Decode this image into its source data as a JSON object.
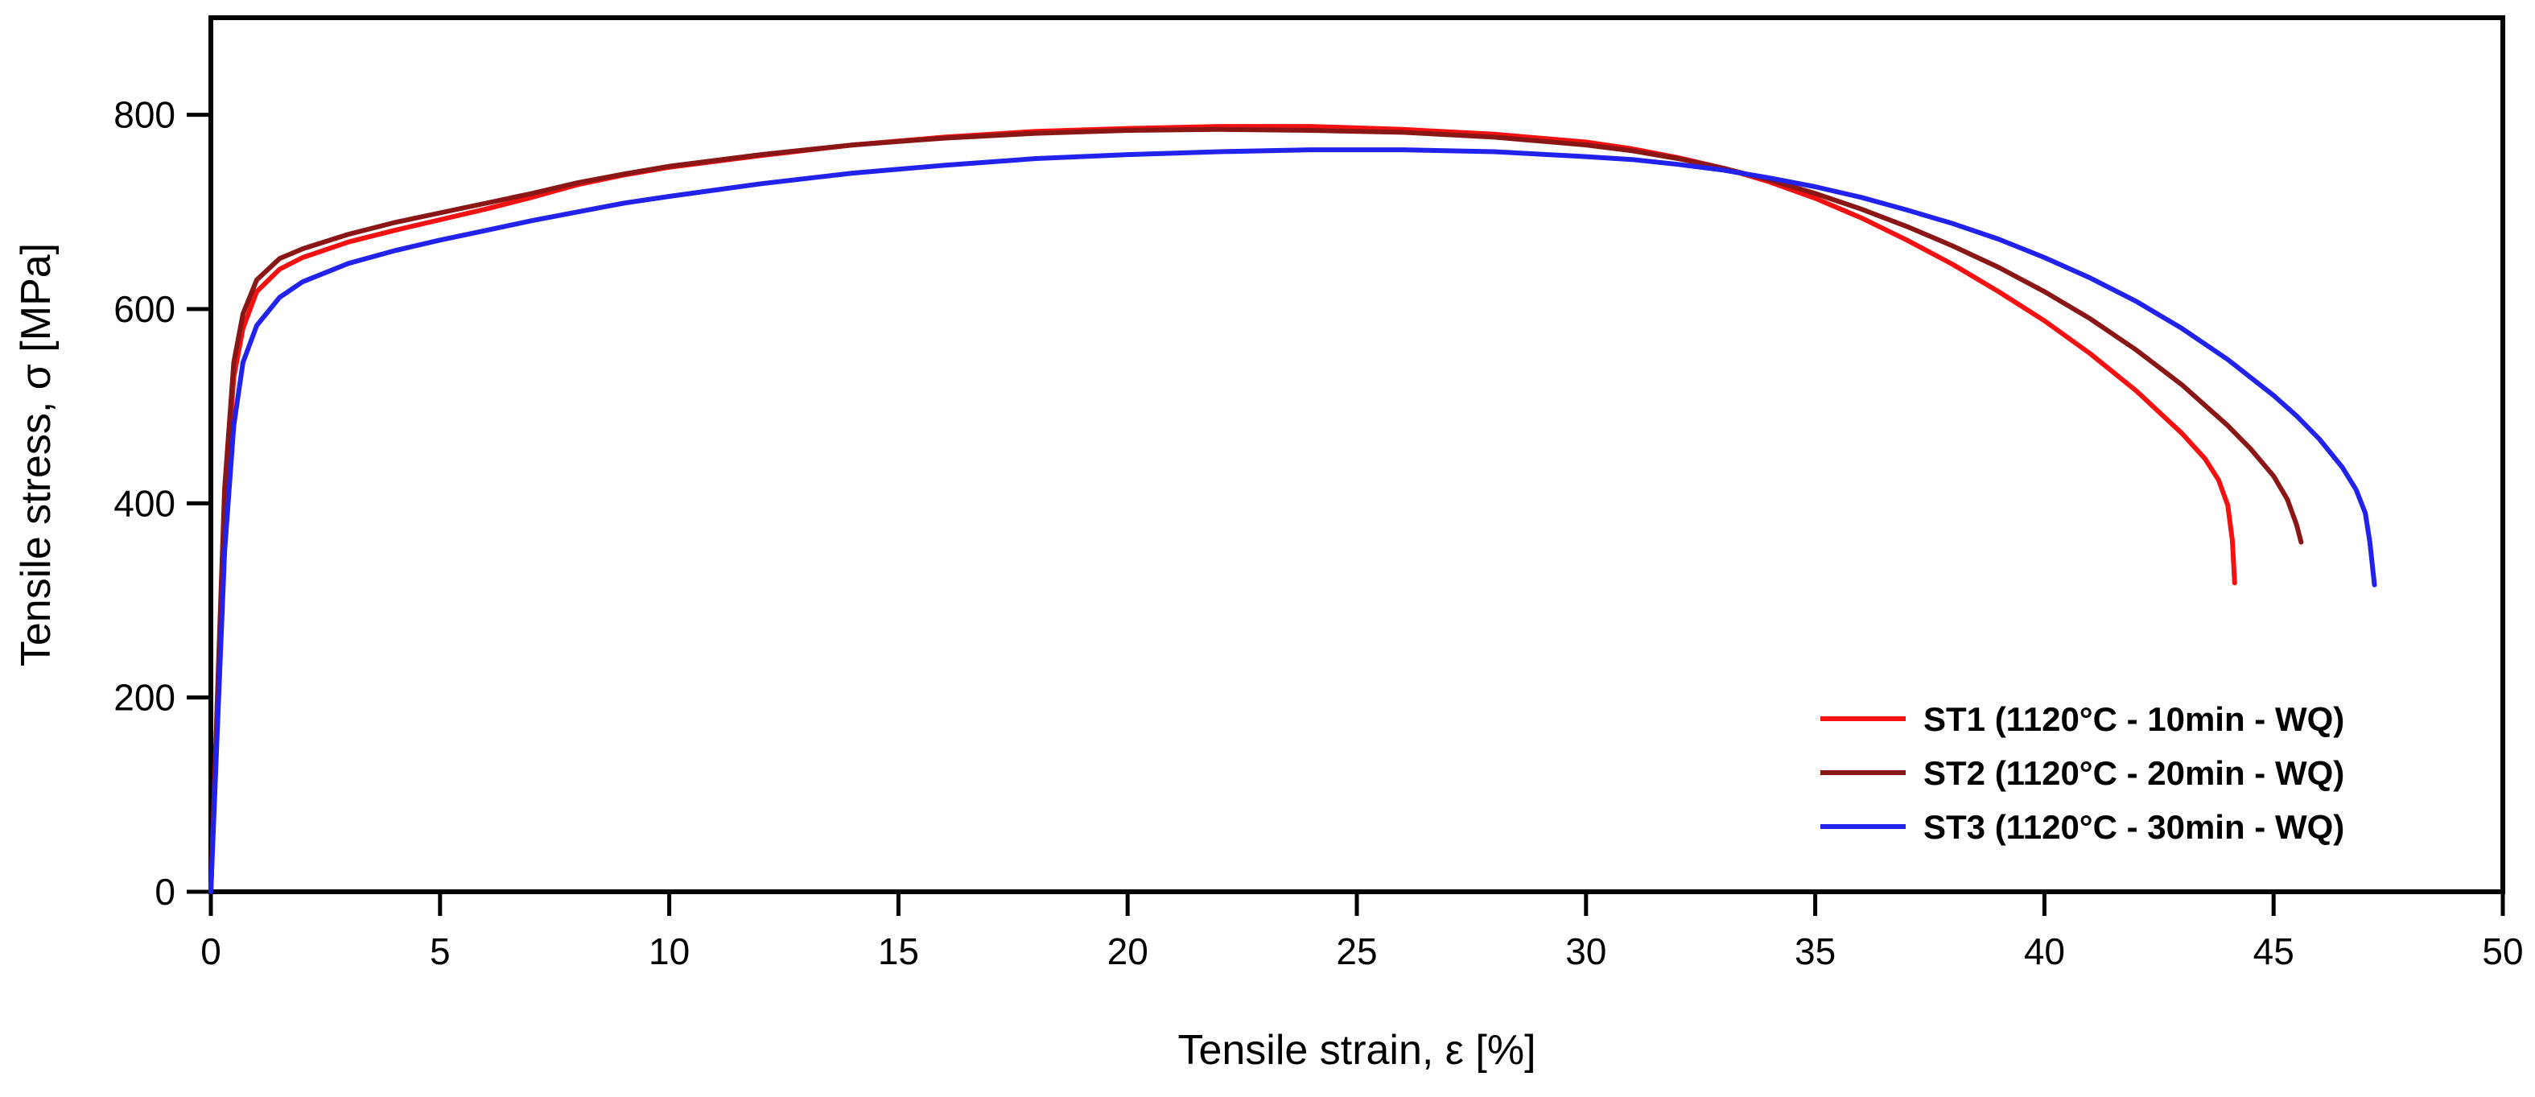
{
  "figure": {
    "kind": "scientific-line-plot",
    "background": "#ffffff"
  },
  "chart_data": {
    "type": "line",
    "title": "",
    "xlabel": "Tensile strain, ε [%]",
    "ylabel": "Tensile stress, σ [MPa]",
    "xlim": [
      0,
      50
    ],
    "ylim": [
      0,
      900
    ],
    "x_ticks": [
      0,
      5,
      10,
      15,
      20,
      25,
      30,
      35,
      40,
      45,
      50
    ],
    "y_ticks": [
      0,
      200,
      400,
      600,
      800
    ],
    "grid": false,
    "legend_position": "lower-right",
    "axis_color": "#000000",
    "series": [
      {
        "name": "ST1 (1120°C - 10min - WQ)",
        "color": "#f51111",
        "ultimate_tensile_strength_MPa": 788,
        "strain_at_failure_pct": 44.2,
        "points": [
          [
            0,
            0
          ],
          [
            0.15,
            200
          ],
          [
            0.3,
            400
          ],
          [
            0.5,
            530
          ],
          [
            0.7,
            580
          ],
          [
            1,
            618
          ],
          [
            1.5,
            641
          ],
          [
            2,
            653
          ],
          [
            3,
            669
          ],
          [
            4,
            681
          ],
          [
            5,
            692
          ],
          [
            6,
            703
          ],
          [
            7,
            715
          ],
          [
            8,
            728
          ],
          [
            9,
            738
          ],
          [
            10,
            746
          ],
          [
            12,
            758
          ],
          [
            14,
            769
          ],
          [
            16,
            777
          ],
          [
            18,
            783
          ],
          [
            20,
            786
          ],
          [
            22,
            788
          ],
          [
            24,
            788
          ],
          [
            26,
            785
          ],
          [
            28,
            780
          ],
          [
            30,
            772
          ],
          [
            31,
            765
          ],
          [
            32,
            756
          ],
          [
            33,
            745
          ],
          [
            34,
            731
          ],
          [
            35,
            714
          ],
          [
            36,
            694
          ],
          [
            37,
            671
          ],
          [
            38,
            646
          ],
          [
            39,
            618
          ],
          [
            40,
            588
          ],
          [
            41,
            554
          ],
          [
            42,
            516
          ],
          [
            43,
            472
          ],
          [
            43.5,
            446
          ],
          [
            43.8,
            424
          ],
          [
            44,
            398
          ],
          [
            44.1,
            362
          ],
          [
            44.15,
            318
          ]
        ]
      },
      {
        "name": "ST2 (1120°C - 20min - WQ)",
        "color": "#8b1616",
        "ultimate_tensile_strength_MPa": 785,
        "strain_at_failure_pct": 45.6,
        "points": [
          [
            0,
            0
          ],
          [
            0.15,
            210
          ],
          [
            0.3,
            415
          ],
          [
            0.5,
            545
          ],
          [
            0.7,
            595
          ],
          [
            1,
            630
          ],
          [
            1.5,
            652
          ],
          [
            2,
            662
          ],
          [
            3,
            677
          ],
          [
            4,
            689
          ],
          [
            5,
            699
          ],
          [
            6,
            709
          ],
          [
            7,
            719
          ],
          [
            8,
            730
          ],
          [
            9,
            739
          ],
          [
            10,
            747
          ],
          [
            12,
            759
          ],
          [
            14,
            769
          ],
          [
            16,
            776
          ],
          [
            18,
            781
          ],
          [
            20,
            784
          ],
          [
            22,
            785
          ],
          [
            24,
            784
          ],
          [
            26,
            782
          ],
          [
            28,
            777
          ],
          [
            30,
            769
          ],
          [
            31,
            763
          ],
          [
            32,
            755
          ],
          [
            33,
            745
          ],
          [
            34,
            733
          ],
          [
            35,
            719
          ],
          [
            36,
            703
          ],
          [
            37,
            685
          ],
          [
            38,
            665
          ],
          [
            39,
            643
          ],
          [
            40,
            618
          ],
          [
            41,
            590
          ],
          [
            42,
            558
          ],
          [
            43,
            522
          ],
          [
            44,
            480
          ],
          [
            44.5,
            456
          ],
          [
            45,
            428
          ],
          [
            45.3,
            404
          ],
          [
            45.5,
            378
          ],
          [
            45.6,
            360
          ]
        ]
      },
      {
        "name": "ST3 (1120°C - 30min - WQ)",
        "color": "#2222ee",
        "ultimate_tensile_strength_MPa": 764,
        "strain_at_failure_pct": 47.2,
        "points": [
          [
            0,
            0
          ],
          [
            0.15,
            175
          ],
          [
            0.3,
            350
          ],
          [
            0.5,
            480
          ],
          [
            0.7,
            545
          ],
          [
            1,
            583
          ],
          [
            1.5,
            612
          ],
          [
            2,
            628
          ],
          [
            3,
            647
          ],
          [
            4,
            660
          ],
          [
            5,
            671
          ],
          [
            6,
            681
          ],
          [
            7,
            691
          ],
          [
            8,
            700
          ],
          [
            9,
            709
          ],
          [
            10,
            716
          ],
          [
            12,
            729
          ],
          [
            14,
            740
          ],
          [
            16,
            748
          ],
          [
            18,
            755
          ],
          [
            20,
            759
          ],
          [
            22,
            762
          ],
          [
            24,
            764
          ],
          [
            26,
            764
          ],
          [
            28,
            762
          ],
          [
            30,
            757
          ],
          [
            31,
            754
          ],
          [
            32,
            749
          ],
          [
            33,
            743
          ],
          [
            34,
            735
          ],
          [
            35,
            726
          ],
          [
            36,
            715
          ],
          [
            37,
            702
          ],
          [
            38,
            688
          ],
          [
            39,
            672
          ],
          [
            40,
            653
          ],
          [
            41,
            632
          ],
          [
            42,
            608
          ],
          [
            43,
            580
          ],
          [
            44,
            548
          ],
          [
            45,
            511
          ],
          [
            45.5,
            490
          ],
          [
            46,
            466
          ],
          [
            46.5,
            437
          ],
          [
            46.8,
            414
          ],
          [
            47,
            390
          ],
          [
            47.1,
            360
          ],
          [
            47.2,
            316
          ]
        ]
      }
    ]
  }
}
